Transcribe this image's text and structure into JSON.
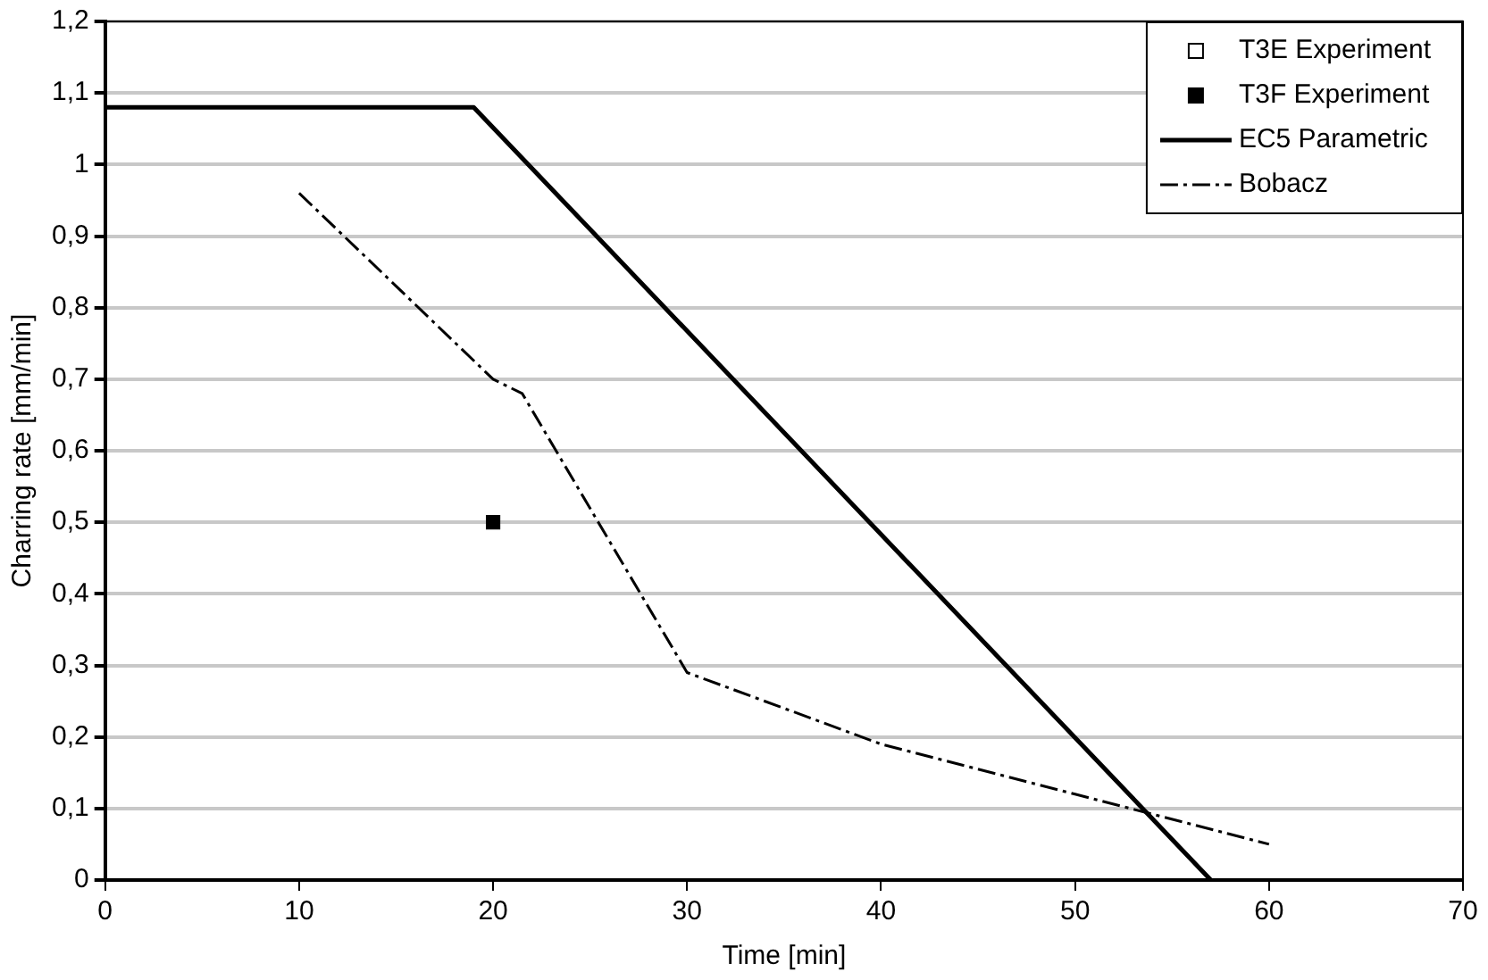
{
  "chart_data": {
    "type": "line",
    "xlabel": "Time [min]",
    "ylabel": "Charring rate [mm/min]",
    "xlim": [
      0,
      70
    ],
    "xticks": [
      0,
      10,
      20,
      30,
      40,
      50,
      60,
      70
    ],
    "ylim": [
      0,
      1.2
    ],
    "yticks": [
      {
        "value": 0,
        "label": "0"
      },
      {
        "value": 0.1,
        "label": "0,1"
      },
      {
        "value": 0.2,
        "label": "0,2"
      },
      {
        "value": 0.3,
        "label": "0,3"
      },
      {
        "value": 0.4,
        "label": "0,4"
      },
      {
        "value": 0.5,
        "label": "0,5"
      },
      {
        "value": 0.6,
        "label": "0,6"
      },
      {
        "value": 0.7,
        "label": "0,7"
      },
      {
        "value": 0.8,
        "label": "0,8"
      },
      {
        "value": 0.9,
        "label": "0,9"
      },
      {
        "value": 1,
        "label": "1"
      },
      {
        "value": 1.1,
        "label": "1,1"
      },
      {
        "value": 1.2,
        "label": "1,2"
      }
    ],
    "grid": "y",
    "legend": "top right",
    "series": [
      {
        "name": "T3E Experiment",
        "type": "scatter",
        "marker": "square",
        "color": "#ffffff"
      },
      {
        "name": "T3F Experiment",
        "type": "scatter",
        "marker": "square",
        "color": "#000000",
        "x": [
          20
        ],
        "values": [
          0.5
        ]
      },
      {
        "name": "EC5 Parametric",
        "type": "line",
        "color": "#000000",
        "line_style": "solid",
        "marker": "none",
        "x": [
          0,
          19,
          57
        ],
        "values": [
          1.08,
          1.08,
          0
        ]
      },
      {
        "name": "Bobacz",
        "type": "line",
        "color": "#000000",
        "line_style": "dashdot",
        "marker": "none",
        "x": [
          10,
          20,
          21.5,
          30,
          40,
          50,
          60
        ],
        "values": [
          0.96,
          0.7,
          0.68,
          0.29,
          0.19,
          0.12,
          0.05
        ]
      }
    ]
  }
}
